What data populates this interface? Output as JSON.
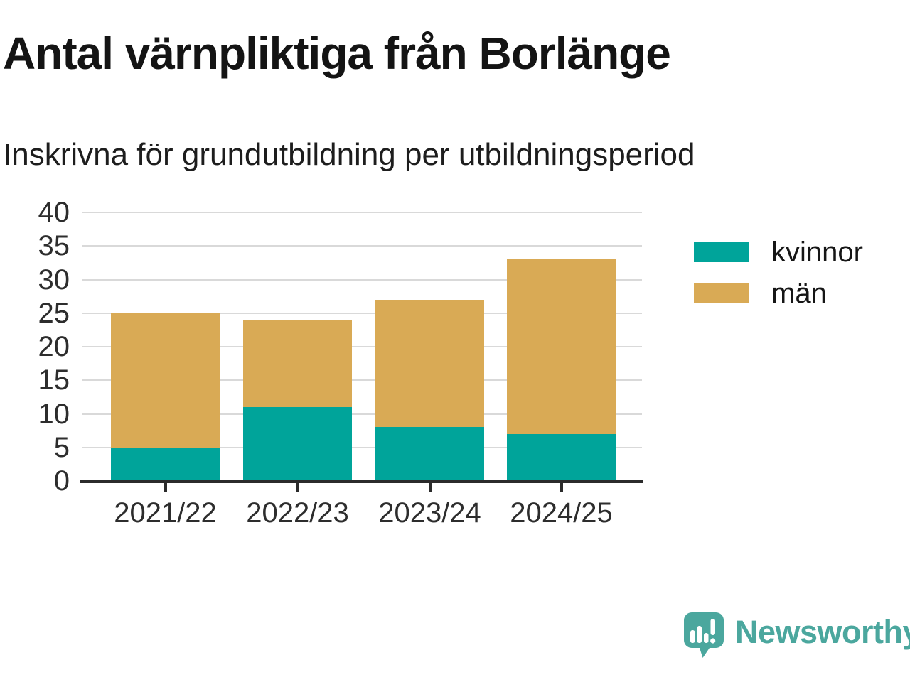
{
  "header": {
    "title": "Antal värnpliktiga från Borlänge",
    "subtitle": "Inskrivna för grundutbildning per utbildningsperiod"
  },
  "chart_data": {
    "type": "bar",
    "stacked": true,
    "title": "Antal värnpliktiga från Borlänge",
    "subtitle": "Inskrivna för grundutbildning per utbildningsperiod",
    "categories": [
      "2021/22",
      "2022/23",
      "2023/24",
      "2024/25"
    ],
    "series": [
      {
        "name": "kvinnor",
        "color": "#00a49a",
        "values": [
          5,
          11,
          8,
          7
        ]
      },
      {
        "name": "män",
        "color": "#d9aa55",
        "values": [
          20,
          13,
          19,
          26
        ]
      }
    ],
    "stacked_totals": [
      25,
      24,
      27,
      33
    ],
    "ylim": [
      0,
      40
    ],
    "yticks": [
      0,
      5,
      10,
      15,
      20,
      25,
      30,
      35,
      40
    ],
    "xlabel": "",
    "ylabel": "",
    "grid": "horizontal",
    "legend_position": "right"
  },
  "legend": {
    "items": [
      {
        "label": "kvinnor",
        "color": "#00a49a"
      },
      {
        "label": "män",
        "color": "#d9aa55"
      }
    ]
  },
  "branding": {
    "name": "Newsworthy",
    "color": "#4ba79e",
    "icon": "newsworthy-speech-bubble-chart-icon"
  }
}
